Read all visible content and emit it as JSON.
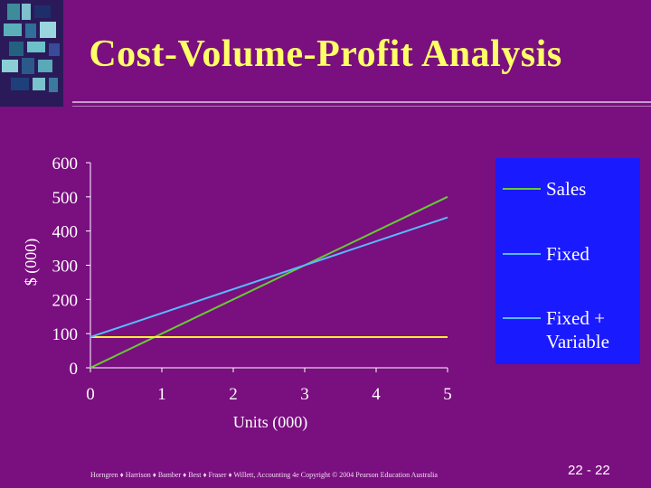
{
  "slide": {
    "title": "Cost-Volume-Profit Analysis",
    "footer": "Horngren ♦ Harrison ♦ Bamber ♦ Best ♦ Fraser ♦ Willett, Accounting 4e Copyright © 2004 Pearson Education Australia",
    "page_number": "22 - 22"
  },
  "colors": {
    "background": "#7a0f80",
    "title": "#ffff66",
    "legend_box": "#1a1aff",
    "sales": "#66cc33",
    "fixed": "#ffee33",
    "fixed_plus_variable": "#55bbff"
  },
  "chart_data": {
    "type": "line",
    "xlabel": "Units (000)",
    "ylabel": "$ (000)",
    "x_ticks": [
      "0",
      "1",
      "2",
      "3",
      "4",
      "5"
    ],
    "y_ticks": [
      "0",
      "100",
      "200",
      "300",
      "400",
      "500",
      "600"
    ],
    "xlim": [
      0,
      5
    ],
    "ylim": [
      0,
      600
    ],
    "grid": false,
    "legend_placement": "right",
    "legend": [
      "Sales",
      "Fixed",
      "Fixed + Variable"
    ],
    "series": [
      {
        "name": "Sales",
        "color": "#66cc33",
        "x": [
          0,
          5
        ],
        "y": [
          0,
          500
        ]
      },
      {
        "name": "Fixed",
        "color": "#ffee33",
        "x": [
          0,
          5
        ],
        "y": [
          90,
          90
        ]
      },
      {
        "name": "Fixed + Variable",
        "color": "#55bbff",
        "x": [
          0,
          5
        ],
        "y": [
          90,
          440
        ]
      }
    ]
  }
}
